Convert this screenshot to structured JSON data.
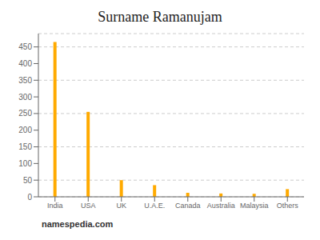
{
  "chart_data": {
    "type": "bar",
    "title": "Surname Ramanujam",
    "categories": [
      "India",
      "USA",
      "UK",
      "U.A.E.",
      "Canada",
      "Australia",
      "Malaysia",
      "Others"
    ],
    "values": [
      465,
      255,
      50,
      35,
      12,
      10,
      9,
      23
    ],
    "color": "#FFAA00",
    "ylim": [
      0,
      490
    ],
    "yticks": [
      0,
      50,
      100,
      150,
      200,
      250,
      300,
      350,
      400,
      450
    ],
    "grid": true,
    "annotations": [
      "namespedia.com"
    ]
  }
}
